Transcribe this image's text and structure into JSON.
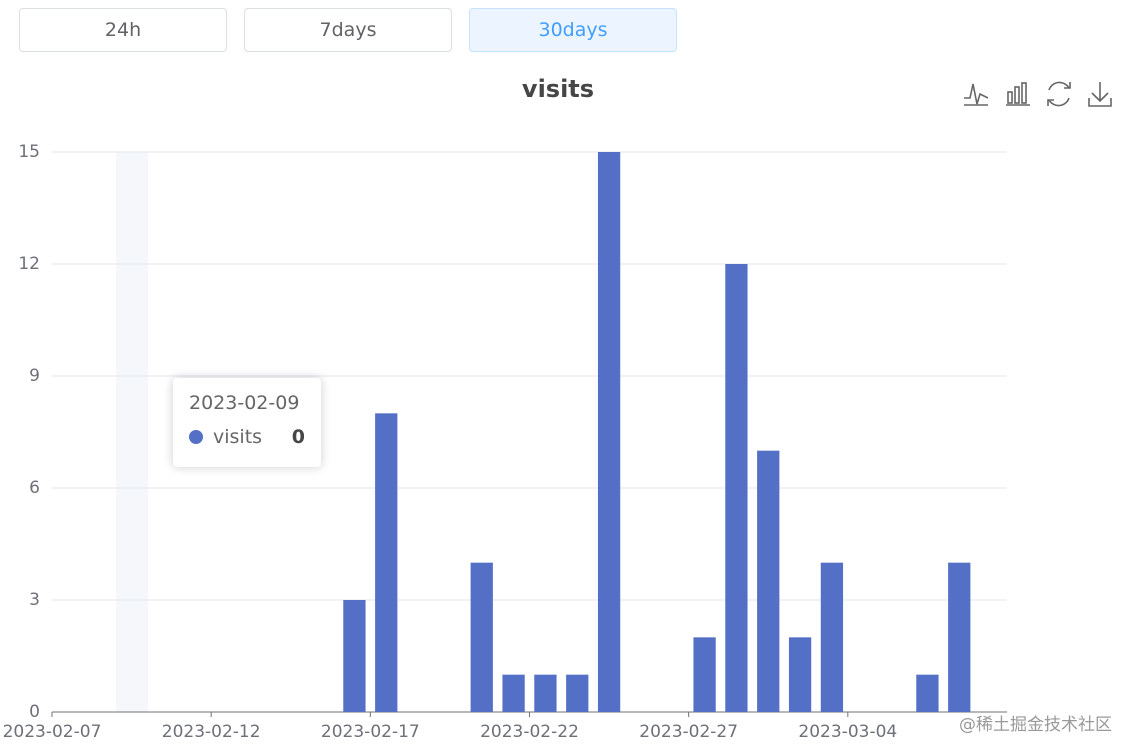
{
  "tabs": [
    "24h",
    "7days",
    "30days"
  ],
  "chart_data": {
    "type": "bar",
    "title": "visits",
    "categories": [
      "2023-02-07",
      null,
      null,
      null,
      null,
      "2023-02-12",
      null,
      null,
      null,
      null,
      "2023-02-17",
      null,
      null,
      null,
      null,
      "2023-02-22",
      null,
      null,
      null,
      null,
      "2023-02-27",
      null,
      null,
      null,
      null,
      "2023-03-04",
      null,
      null,
      null,
      null
    ],
    "series": [
      {
        "name": "visits",
        "color": "#5470c6",
        "values": [
          0,
          0,
          0,
          0,
          0,
          0,
          0,
          0,
          0,
          3,
          8,
          0,
          0,
          4,
          1,
          1,
          1,
          15,
          0,
          0,
          2,
          12,
          7,
          2,
          4,
          0,
          0,
          1,
          4,
          0
        ]
      }
    ],
    "ylim": [
      0,
      15
    ],
    "yticks": [
      0,
      3,
      6,
      9,
      12,
      15
    ],
    "grid": true
  },
  "tooltip": {
    "title": "2023-02-09",
    "series": "visits",
    "value": 0
  },
  "watermark": "@稀土掘金技术社区"
}
